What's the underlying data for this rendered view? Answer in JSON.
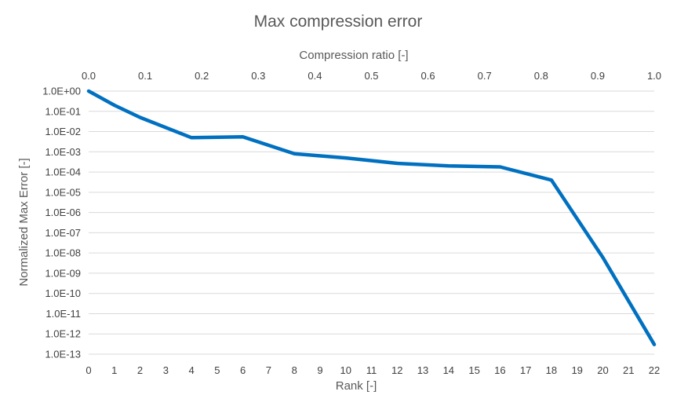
{
  "chart_data": {
    "type": "line",
    "title": "Max compression error",
    "xlabel": "Rank [-]",
    "x2label": "Compression ratio [-]",
    "ylabel": "Normalized Max Error [-]",
    "yscale": "log",
    "ylim": [
      1e-13,
      1
    ],
    "y_tick_labels": [
      "1.0E+00",
      "1.0E-01",
      "1.0E-02",
      "1.0E-03",
      "1.0E-04",
      "1.0E-05",
      "1.0E-06",
      "1.0E-07",
      "1.0E-08",
      "1.0E-09",
      "1.0E-10",
      "1.0E-11",
      "1.0E-12",
      "1.0E-13"
    ],
    "xlim": [
      0,
      22
    ],
    "x_tick_labels": [
      "0",
      "1",
      "2",
      "3",
      "4",
      "5",
      "6",
      "7",
      "8",
      "9",
      "10",
      "11",
      "12",
      "13",
      "14",
      "15",
      "16",
      "17",
      "18",
      "19",
      "20",
      "21",
      "22"
    ],
    "x2lim": [
      0,
      1
    ],
    "x2_tick_labels": [
      "0.0",
      "0.1",
      "0.2",
      "0.3",
      "0.4",
      "0.5",
      "0.6",
      "0.7",
      "0.8",
      "0.9",
      "1.0"
    ],
    "grid": true,
    "color": "#0070c0",
    "series": [
      {
        "x": [
          0,
          1,
          2,
          4,
          6,
          8,
          10,
          12,
          14,
          16,
          18,
          20,
          22
        ],
        "y": [
          1.0,
          0.2,
          0.05,
          0.005,
          0.0055,
          0.0008,
          0.0005,
          0.00027,
          0.0002,
          0.00018,
          4e-05,
          6e-09,
          3e-13
        ]
      }
    ]
  }
}
